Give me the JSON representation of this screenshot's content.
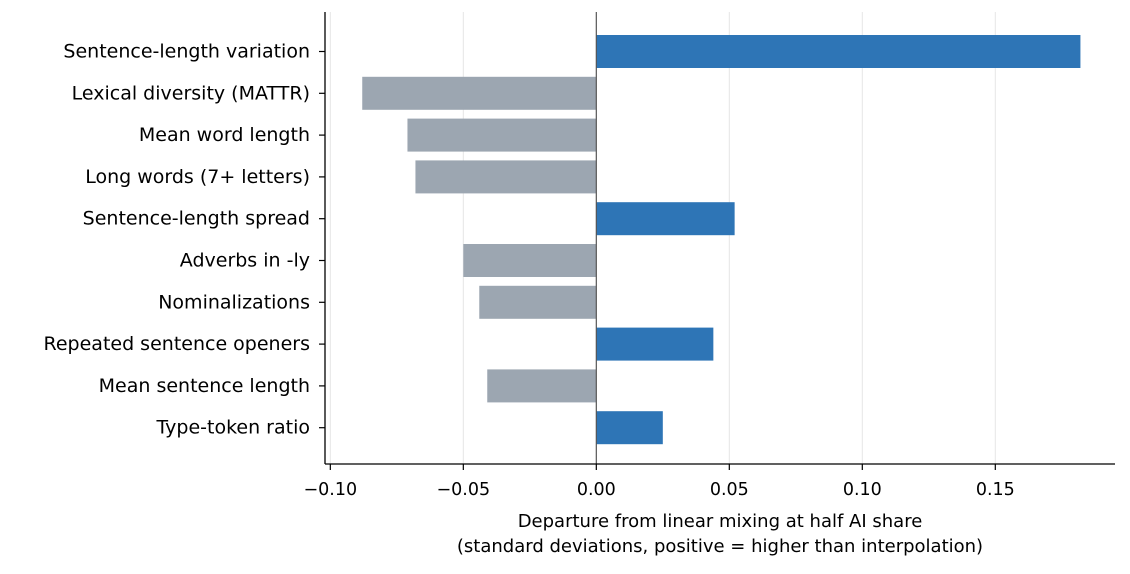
{
  "chart_data": {
    "type": "bar",
    "orientation": "horizontal",
    "categories": [
      "Sentence-length variation",
      "Lexical diversity (MATTR)",
      "Mean word length",
      "Long words (7+ letters)",
      "Sentence-length spread",
      "Adverbs in -ly",
      "Nominalizations",
      "Repeated sentence openers",
      "Mean sentence length",
      "Type-token ratio"
    ],
    "values": [
      0.182,
      -0.088,
      -0.071,
      -0.068,
      0.052,
      -0.05,
      -0.044,
      0.044,
      -0.041,
      0.025
    ],
    "xlabel_line1": "Departure from linear mixing at half AI share",
    "xlabel_line2": "(standard deviations, positive = higher than interpolation)",
    "xlim": [
      -0.102,
      0.195
    ],
    "xticks": [
      -0.1,
      -0.05,
      0.0,
      0.05,
      0.1,
      0.15
    ],
    "xtick_labels": [
      "−0.10",
      "−0.05",
      "0.00",
      "0.05",
      "0.10",
      "0.15"
    ],
    "grid": "vertical, light gray",
    "colors": {
      "positive": "#2e75b6",
      "negative": "#9ca6b1"
    }
  }
}
